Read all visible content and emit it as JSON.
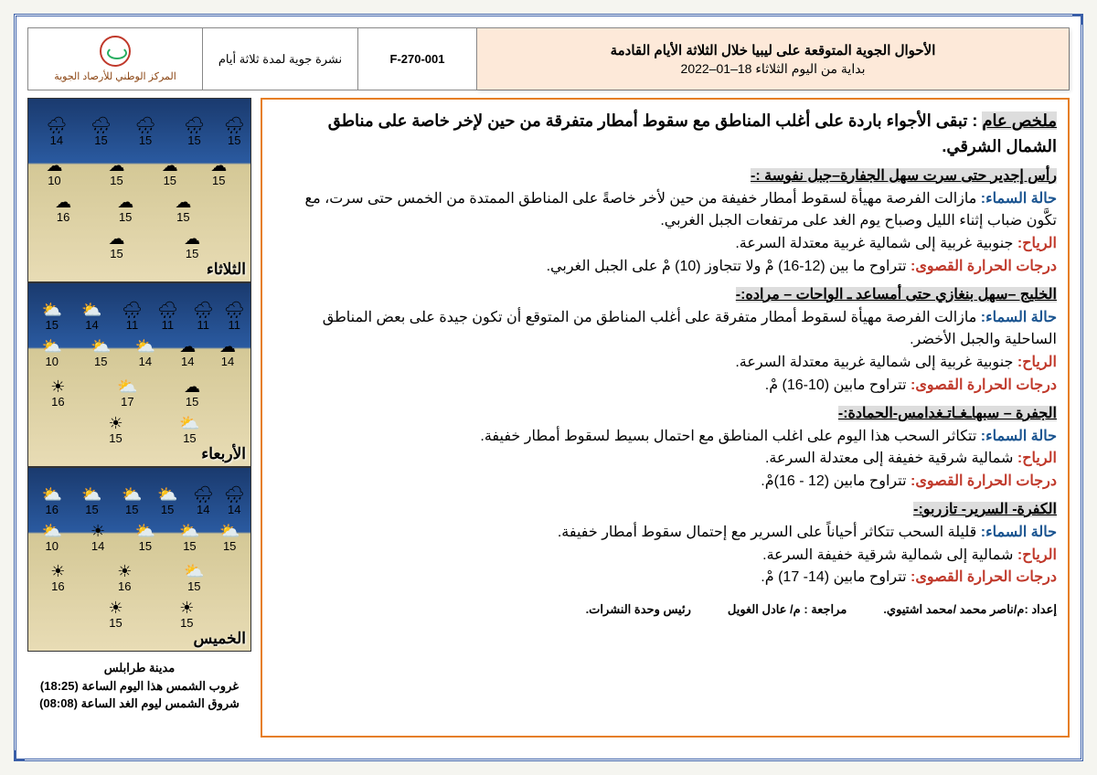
{
  "header": {
    "logo_text": "المركز الوطني للأرصاد الجوية",
    "bulletin_type": "نشرة جوية لمدة ثلاثة أيام",
    "code": "F-270-001",
    "title_main": "الأحوال الجوية المتوقعة على ليبيا خلال الثلاثة الأيام القادمة",
    "title_sub": "بداية من اليوم الثلاثاء 18–01–2022"
  },
  "summary": {
    "label": "ملخص عام",
    "text": " : تبقى الأجواء باردة على أغلب المناطق مع سقوط أمطار متفرقة من حين لإخر خاصة على مناطق الشمال الشرقي."
  },
  "regions": [
    {
      "name": "رأس إجدير حتى سرت سهل الجفارة–جبل نفوسة :-",
      "sky_label": "حالة السماء:",
      "sky": " مازالت الفرصة مهيأة لسقوط أمطار خفيفة من حين لأخر خاصةً على المناطق الممتدة من الخمس حتى سرت،  مع تكَّون ضباب إثناء الليل وصباح يوم الغد على مرتفعات الجبل الغربي.",
      "wind_label": "الرياح:",
      "wind": " جنوبية غربية إلى شمالية غربية معتدلة السرعة.",
      "temp_label": "درجات الحرارة القصوى:",
      "temp": " تتراوح ما بين (12-16) مْ ولا تتجاوز (10) مْ على الجبل الغربي."
    },
    {
      "name": "الخليج –سهل بنغازي حتى أمساعد ـ الواحات – مراده:-",
      "sky_label": "حالة السماء:",
      "sky": " مازالت الفرصة مهيأة لسقوط أمطار متفرقة على أغلب المناطق من المتوقع أن تكون جيدة على بعض المناطق الساحلية والجبل الأخضر.",
      "wind_label": "الرياح:",
      "wind": " جنوبية غربية إلى شمالية غربية معتدلة السرعة.",
      "temp_label": "درجات الحرارة القصوى:",
      "temp": " تتراوح مابين (10-16) مْ."
    },
    {
      "name": "الجفرة – سبهاـغـاتـغدامس-الحمادة:-",
      "sky_label": "حالة السماء:",
      "sky": " تتكاثر السحب هذا اليوم على اغلب المناطق مع احتمال بسيط لسقوط أمطار خفيفة.",
      "wind_label": "الرياح:",
      "wind": " شمالية شرقية خفيفة إلى معتدلة السرعة.",
      "temp_label": "درجات الحرارة القصوى:",
      "temp": " تتراوح مابين (12 - 16)مْ."
    },
    {
      "name": "الكفرة- السرير- تازربو:-",
      "sky_label": "حالة السماء:",
      "sky": " قليلة السحب تتكاثر أحياناً على السرير مع إحتمال سقوط أمطار خفيفة.",
      "wind_label": "الرياح:",
      "wind": " شمالية إلى شمالية شرقية خفيفة السرعة.",
      "temp_label": "درجات الحرارة القصوى:",
      "temp": " تتراوح مابين (14- 17) مْ."
    }
  ],
  "footer": {
    "prepared": "إعداد :م/ناصر محمد /محمد اشتيوي.",
    "reviewed": "مراجعة : م/ عادل الغويل",
    "head": "رئيس وحدة النشرات."
  },
  "maps": [
    {
      "day": "الثلاثاء",
      "icons": [
        {
          "t": 10,
          "l": 8,
          "ic": "🌧",
          "v": "14"
        },
        {
          "t": 10,
          "l": 28,
          "ic": "🌧",
          "v": "15"
        },
        {
          "t": 10,
          "l": 48,
          "ic": "🌧",
          "v": "15"
        },
        {
          "t": 10,
          "l": 70,
          "ic": "🌧",
          "v": "15"
        },
        {
          "t": 10,
          "l": 88,
          "ic": "🌧",
          "v": "15"
        },
        {
          "t": 32,
          "l": 8,
          "ic": "☁",
          "v": "10"
        },
        {
          "t": 32,
          "l": 36,
          "ic": "☁",
          "v": "15"
        },
        {
          "t": 32,
          "l": 60,
          "ic": "☁",
          "v": "15"
        },
        {
          "t": 32,
          "l": 82,
          "ic": "☁",
          "v": "15"
        },
        {
          "t": 52,
          "l": 12,
          "ic": "☁",
          "v": "16"
        },
        {
          "t": 52,
          "l": 40,
          "ic": "☁",
          "v": "15"
        },
        {
          "t": 52,
          "l": 66,
          "ic": "☁",
          "v": "15"
        },
        {
          "t": 72,
          "l": 36,
          "ic": "☁",
          "v": "15"
        },
        {
          "t": 72,
          "l": 70,
          "ic": "☁",
          "v": "15"
        }
      ]
    },
    {
      "day": "الأربعاء",
      "icons": [
        {
          "t": 10,
          "l": 6,
          "ic": "⛅",
          "v": "15"
        },
        {
          "t": 10,
          "l": 24,
          "ic": "⛅",
          "v": "14"
        },
        {
          "t": 10,
          "l": 42,
          "ic": "🌧",
          "v": "11"
        },
        {
          "t": 10,
          "l": 58,
          "ic": "🌧",
          "v": "11"
        },
        {
          "t": 10,
          "l": 74,
          "ic": "🌧",
          "v": "11"
        },
        {
          "t": 10,
          "l": 88,
          "ic": "🌧",
          "v": "11"
        },
        {
          "t": 30,
          "l": 6,
          "ic": "⛅",
          "v": "10"
        },
        {
          "t": 30,
          "l": 28,
          "ic": "⛅",
          "v": "15"
        },
        {
          "t": 30,
          "l": 48,
          "ic": "⛅",
          "v": "14"
        },
        {
          "t": 30,
          "l": 68,
          "ic": "☁",
          "v": "14"
        },
        {
          "t": 30,
          "l": 86,
          "ic": "☁",
          "v": "14"
        },
        {
          "t": 52,
          "l": 10,
          "ic": "☀",
          "v": "16"
        },
        {
          "t": 52,
          "l": 40,
          "ic": "⛅",
          "v": "17"
        },
        {
          "t": 52,
          "l": 70,
          "ic": "☁",
          "v": "15"
        },
        {
          "t": 72,
          "l": 36,
          "ic": "☀",
          "v": "15"
        },
        {
          "t": 72,
          "l": 68,
          "ic": "⛅",
          "v": "15"
        }
      ]
    },
    {
      "day": "الخميس",
      "icons": [
        {
          "t": 10,
          "l": 6,
          "ic": "⛅",
          "v": "16"
        },
        {
          "t": 10,
          "l": 24,
          "ic": "⛅",
          "v": "15"
        },
        {
          "t": 10,
          "l": 42,
          "ic": "⛅",
          "v": "15"
        },
        {
          "t": 10,
          "l": 58,
          "ic": "⛅",
          "v": "15"
        },
        {
          "t": 10,
          "l": 74,
          "ic": "🌧",
          "v": "14"
        },
        {
          "t": 10,
          "l": 88,
          "ic": "🌧",
          "v": "14"
        },
        {
          "t": 30,
          "l": 6,
          "ic": "⛅",
          "v": "10"
        },
        {
          "t": 30,
          "l": 28,
          "ic": "☀",
          "v": "14"
        },
        {
          "t": 30,
          "l": 48,
          "ic": "⛅",
          "v": "15"
        },
        {
          "t": 30,
          "l": 68,
          "ic": "⛅",
          "v": "15"
        },
        {
          "t": 30,
          "l": 86,
          "ic": "⛅",
          "v": "15"
        },
        {
          "t": 52,
          "l": 10,
          "ic": "☀",
          "v": "16"
        },
        {
          "t": 52,
          "l": 40,
          "ic": "☀",
          "v": "16"
        },
        {
          "t": 52,
          "l": 70,
          "ic": "⛅",
          "v": "15"
        },
        {
          "t": 72,
          "l": 36,
          "ic": "☀",
          "v": "15"
        },
        {
          "t": 72,
          "l": 68,
          "ic": "☀",
          "v": "15"
        }
      ]
    }
  ],
  "city_info": {
    "city": "مدينة طرابلس",
    "sunset": "غروب الشمس هذا اليوم الساعة (18:25)",
    "sunrise": "شروق الشمس ليوم الغد الساعة (08:08)"
  }
}
